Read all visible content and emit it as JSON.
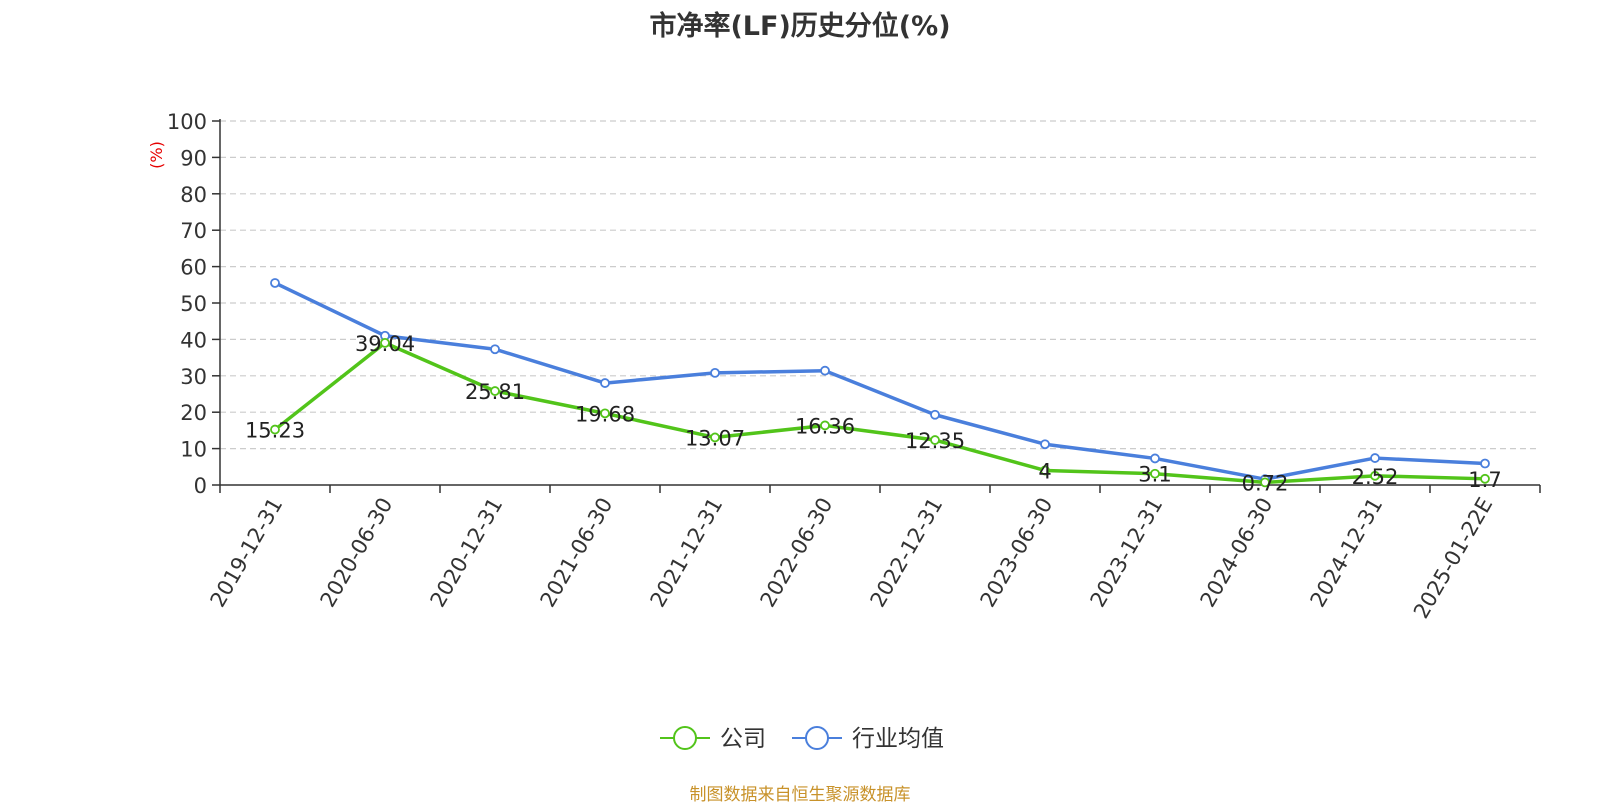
{
  "chart_data": {
    "type": "line",
    "title": "市净率(LF)历史分位(%)",
    "ylabel": "(%)",
    "xlabel": "",
    "ylim": [
      0,
      100
    ],
    "y_ticks": [
      0,
      10,
      20,
      30,
      40,
      50,
      60,
      70,
      80,
      90,
      100
    ],
    "grid": true,
    "legend_position": "bottom",
    "categories": [
      "2019-12-31",
      "2020-06-30",
      "2020-12-31",
      "2021-06-30",
      "2021-12-31",
      "2022-06-30",
      "2022-12-31",
      "2023-06-30",
      "2023-12-31",
      "2024-06-30",
      "2024-12-31",
      "2025-01-22E"
    ],
    "series": [
      {
        "name": "公司",
        "color": "#52c41a",
        "show_labels": true,
        "values": [
          15.23,
          39.04,
          25.81,
          19.68,
          13.07,
          16.36,
          12.35,
          4,
          3.1,
          0.72,
          2.52,
          1.7
        ],
        "labels": [
          "15.23",
          "39.04",
          "25.81",
          "19.68",
          "13.07",
          "16.36",
          "12.35",
          "4",
          "3.1",
          "0.72",
          "2.52",
          "1.7"
        ]
      },
      {
        "name": "行业均值",
        "color": "#4a7fdc",
        "show_labels": false,
        "values": [
          55.5,
          41,
          37.3,
          28,
          30.8,
          31.4,
          19.3,
          11.2,
          7.3,
          1.6,
          7.4,
          5.9
        ]
      }
    ]
  },
  "footer": {
    "source": "制图数据来自恒生聚源数据库"
  }
}
